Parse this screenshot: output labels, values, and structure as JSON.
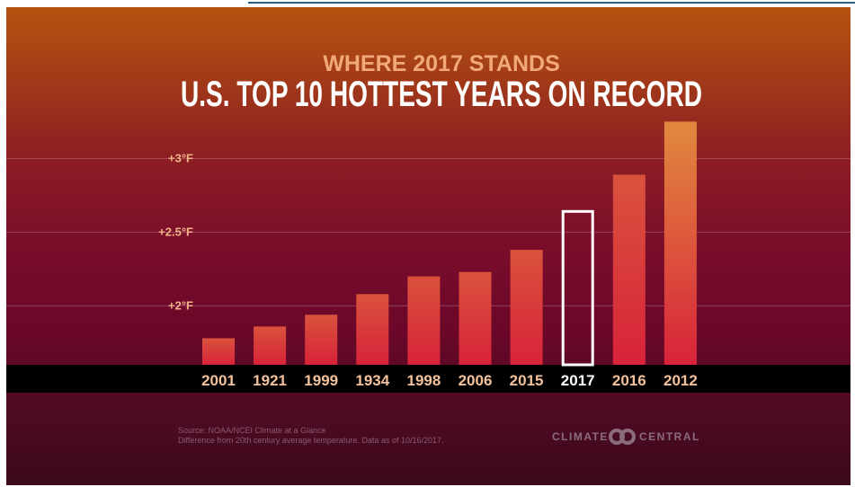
{
  "chart_data": {
    "type": "bar",
    "supertitle": "WHERE 2017 STANDS",
    "title": "U.S. TOP 10 HOTTEST YEARS ON RECORD",
    "categories": [
      "2001",
      "1921",
      "1999",
      "1934",
      "1998",
      "2006",
      "2015",
      "2017",
      "2016",
      "2012"
    ],
    "values": [
      1.78,
      1.86,
      1.94,
      2.08,
      2.2,
      2.23,
      2.38,
      2.65,
      2.89,
      3.25
    ],
    "highlight": "2017",
    "yticks": [
      {
        "value": 2.0,
        "label": "+2°F"
      },
      {
        "value": 2.5,
        "label": "+2.5°F"
      },
      {
        "value": 3.0,
        "label": "+3°F"
      }
    ],
    "unit": "°F",
    "ylim": [
      1.6,
      3.35
    ],
    "grid": true
  },
  "colors": {
    "supertitle": "#f2a979",
    "title": "#ffffff",
    "tick": "#f2b48a",
    "category": "#f3c29c",
    "highlight_category": "#ffffff",
    "bar_top": "#d9523c",
    "bar_bottom": "#d8233a",
    "bar_top_tallest": "#e1893e",
    "highlight_outline": "#ffffff",
    "baseline_band": "#000000",
    "source_text": "#8a5a70",
    "logo": "#8b6c7e"
  },
  "footer": {
    "source_line1": "Source: NOAA/NCEI Climate at a Glance",
    "source_line2": "Difference from 20th century average temperature. Data as of 10/16/2017."
  },
  "logo": {
    "left_word": "CLIMATE",
    "right_word": "CENTRAL",
    "icon": "linked-rings-icon"
  }
}
